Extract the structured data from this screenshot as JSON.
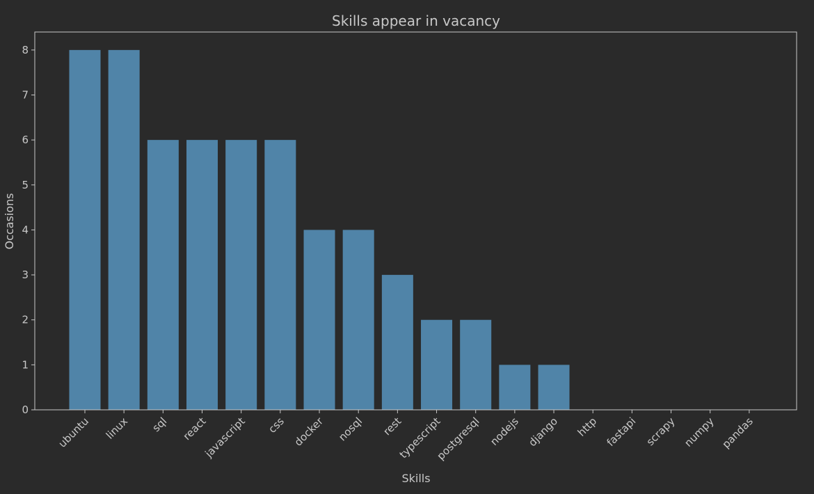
{
  "chart_data": {
    "type": "bar",
    "title": "Skills appear in vacancy",
    "xlabel": "Skills",
    "ylabel": "Occasions",
    "categories": [
      "ubuntu",
      "linux",
      "sql",
      "react",
      "javascript",
      "css",
      "docker",
      "nosql",
      "rest",
      "typescript",
      "postgresql",
      "nodejs",
      "django",
      "http",
      "fastapi",
      "scrapy",
      "numpy",
      "pandas"
    ],
    "values": [
      8,
      8,
      6,
      6,
      6,
      6,
      4,
      4,
      3,
      2,
      2,
      1,
      1,
      0,
      0,
      0,
      0,
      0
    ],
    "yticks": [
      0,
      1,
      2,
      3,
      4,
      5,
      6,
      7,
      8
    ],
    "ylim": [
      0,
      8.4
    ],
    "grid": false,
    "colors": {
      "background": "#2a2a2a",
      "bar": "#5084a8",
      "axes": "#c8c8c8",
      "text": "#c8c8c8"
    }
  }
}
